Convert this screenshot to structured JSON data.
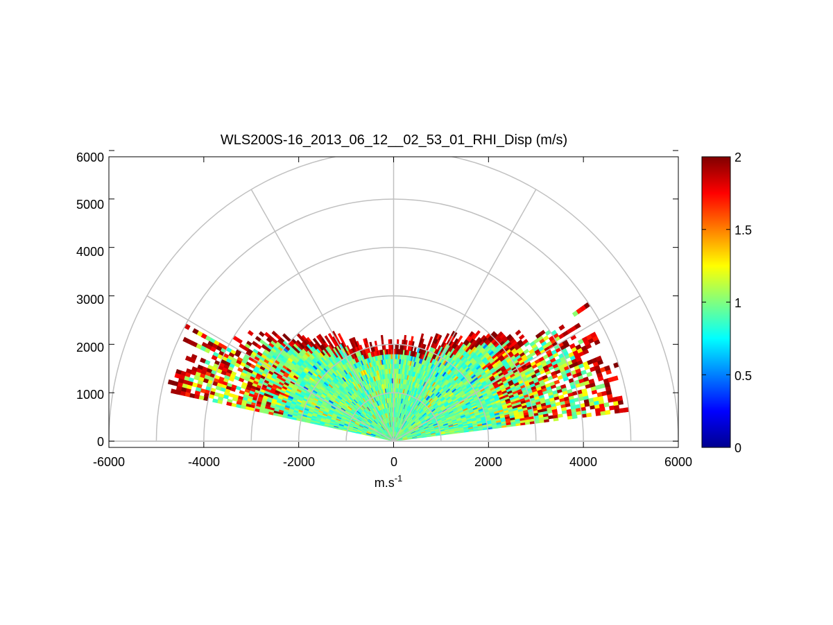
{
  "chart_data": {
    "type": "heatmap",
    "subtype": "polar-rhi-sector",
    "title": "WLS200S-16_2013_06_12__02_53_01_RHI_Disp (m/s)",
    "xlabel": "m.s",
    "xlabel_superscript": "-1",
    "ylabel": "",
    "xlim": [
      -6000,
      6000
    ],
    "ylim": [
      0,
      6000
    ],
    "x_ticks": [
      "-6000",
      "-4000",
      "-2000",
      "0",
      "2000",
      "4000",
      "6000"
    ],
    "y_ticks": [
      "0",
      "1000",
      "2000",
      "3000",
      "4000",
      "5000",
      "6000"
    ],
    "polar_grid_radii": [
      1000,
      2000,
      3000,
      4000,
      5000,
      6000
    ],
    "polar_grid_angles_deg": [
      0,
      30,
      60,
      90,
      120,
      150,
      180
    ],
    "grid": true,
    "colorbar": {
      "label": "",
      "range": [
        0,
        2
      ],
      "ticks": [
        "0",
        "0.5",
        "1",
        "1.5",
        "2"
      ],
      "colormap": "jet",
      "position": "right"
    },
    "sector": {
      "elevation_range_deg": [
        7,
        168
      ],
      "range_extent_m": [
        0,
        5000
      ],
      "range_gate_m": 100
    },
    "field_summary": {
      "core_value_range": [
        0.8,
        1.1
      ],
      "core_max_range_m": 2000,
      "edge_band_value": 2,
      "edge_band_range_m": [
        1900,
        2200
      ],
      "low_elevation_far_range_m": 5000,
      "typical_core_value": 0.95
    }
  }
}
